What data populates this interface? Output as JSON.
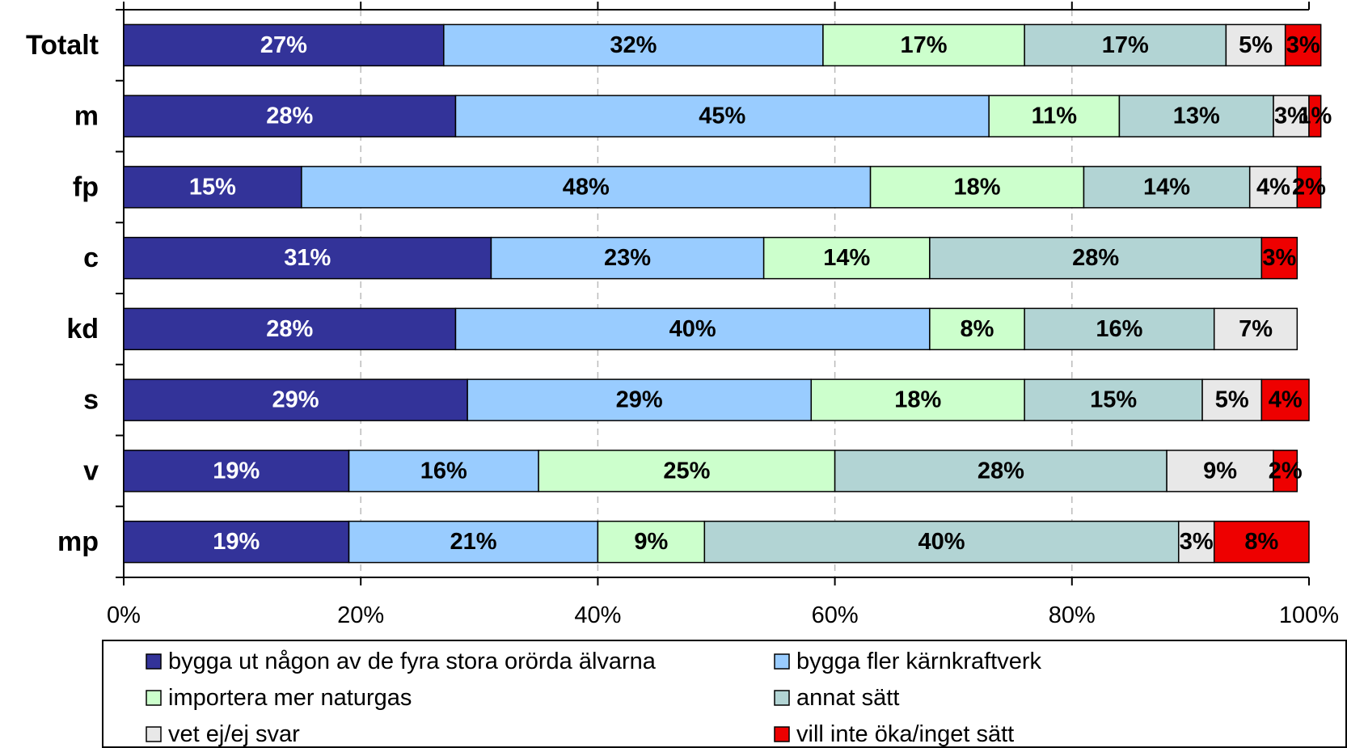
{
  "chart_data": {
    "type": "stacked_barh",
    "categories": [
      "Totalt",
      "m",
      "fp",
      "c",
      "kd",
      "s",
      "v",
      "mp"
    ],
    "series": [
      {
        "name": "bygga ut någon av de fyra stora orörda älvarna",
        "color": "#333399",
        "values": [
          27,
          28,
          15,
          31,
          28,
          29,
          19,
          19
        ],
        "value_labels": [
          "27%",
          "28%",
          "15%",
          "31%",
          "28%",
          "29%",
          "19%",
          "19%"
        ]
      },
      {
        "name": "bygga fler kärnkraftverk",
        "color": "#99ccff",
        "values": [
          32,
          45,
          48,
          23,
          40,
          29,
          16,
          21
        ],
        "value_labels": [
          "32%",
          "45%",
          "48%",
          "23%",
          "40%",
          "29%",
          "16%",
          "21%"
        ]
      },
      {
        "name": "importera mer naturgas",
        "color": "#ccffcc",
        "values": [
          17,
          11,
          18,
          14,
          8,
          18,
          25,
          9
        ],
        "value_labels": [
          "17%",
          "11%",
          "18%",
          "14%",
          "8%",
          "18%",
          "25%",
          "9%"
        ]
      },
      {
        "name": "annat sätt",
        "color": "#b2d4d4",
        "values": [
          17,
          13,
          14,
          28,
          16,
          15,
          28,
          40
        ],
        "value_labels": [
          "17%",
          "13%",
          "14%",
          "28%",
          "16%",
          "15%",
          "28%",
          "40%"
        ]
      },
      {
        "name": "vet ej/ej svar",
        "color": "#e8e8e8",
        "values": [
          5,
          3,
          4,
          null,
          7,
          5,
          9,
          3
        ],
        "value_labels": [
          "5%",
          "3%",
          "4%",
          null,
          "7%",
          "5%",
          "9%",
          "3%"
        ]
      },
      {
        "name": "vill inte öka/inget sätt",
        "color": "#ee0000",
        "values": [
          3,
          1,
          2,
          3,
          null,
          4,
          2,
          8
        ],
        "value_labels": [
          "3%",
          "1%",
          "2%",
          "3%",
          null,
          "4%",
          "2%",
          "8%"
        ]
      }
    ],
    "xlim": [
      0,
      100
    ],
    "xticks": [
      {
        "value": 0,
        "label": "0%"
      },
      {
        "value": 20,
        "label": "20%"
      },
      {
        "value": 40,
        "label": "40%"
      },
      {
        "value": 60,
        "label": "60%"
      },
      {
        "value": 80,
        "label": "80%"
      },
      {
        "value": 100,
        "label": "100%"
      }
    ],
    "grid": true,
    "legend": "bottom"
  }
}
